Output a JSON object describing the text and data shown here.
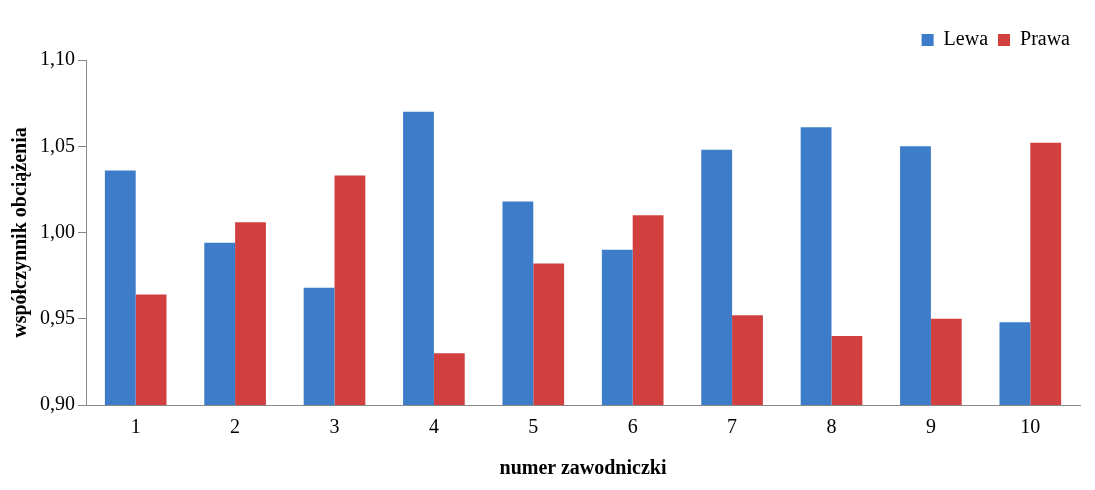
{
  "chart_data": {
    "type": "bar",
    "xlabel": "numer zawodniczki",
    "ylabel": "współczynnik obciążenia",
    "categories": [
      "1",
      "2",
      "3",
      "4",
      "5",
      "6",
      "7",
      "8",
      "9",
      "10"
    ],
    "series": [
      {
        "name": "Lewa",
        "color": "#3d7cc9",
        "values": [
          1.036,
          0.994,
          0.968,
          1.07,
          1.018,
          0.99,
          1.048,
          1.061,
          1.05,
          0.948
        ]
      },
      {
        "name": "Prawa",
        "color": "#d23f3f",
        "values": [
          0.964,
          1.006,
          1.033,
          0.93,
          0.982,
          1.01,
          0.952,
          0.94,
          0.95,
          1.052
        ]
      }
    ],
    "ylim": [
      0.9,
      1.1
    ],
    "yticks": [
      {
        "value": 0.9,
        "label": "0,90"
      },
      {
        "value": 0.95,
        "label": "0,95"
      },
      {
        "value": 1.0,
        "label": "1,00"
      },
      {
        "value": 1.05,
        "label": "1,05"
      },
      {
        "value": 1.1,
        "label": "1,10"
      }
    ],
    "grid": false,
    "legend": "top right"
  }
}
